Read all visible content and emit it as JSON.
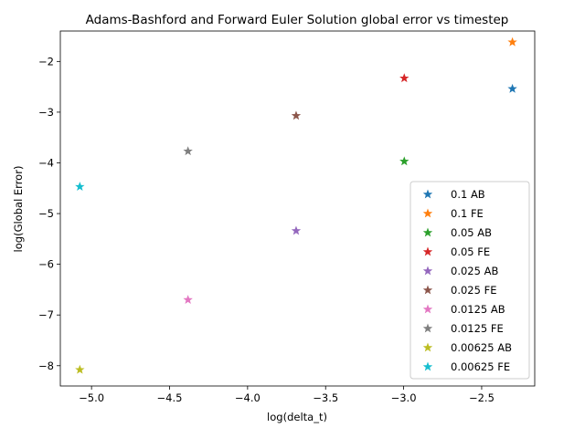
{
  "chart_data": {
    "type": "scatter",
    "title": "Adams-Bashford and Forward Euler Solution global error vs timestep",
    "xlabel": "log(delta_t)",
    "ylabel": "log(Global Error)",
    "xlim": [
      -5.2,
      -2.16
    ],
    "ylim": [
      -8.4,
      -1.4
    ],
    "xticks": [
      -5.0,
      -4.5,
      -4.0,
      -3.5,
      -3.0,
      -2.5
    ],
    "xtick_labels": [
      "−5.0",
      "−4.5",
      "−4.0",
      "−3.5",
      "−3.0",
      "−2.5"
    ],
    "yticks": [
      -8,
      -7,
      -6,
      -5,
      -4,
      -3,
      -2
    ],
    "ytick_labels": [
      "−8",
      "−7",
      "−6",
      "−5",
      "−4",
      "−3",
      "−2"
    ],
    "grid": false,
    "legend_position": "lower-right",
    "marker": "star",
    "series": [
      {
        "name": "0.1 AB",
        "color": "#1f77b4",
        "x": -2.303,
        "y": -2.54
      },
      {
        "name": "0.1 FE",
        "color": "#ff7f0e",
        "x": -2.303,
        "y": -1.62
      },
      {
        "name": "0.05 AB",
        "color": "#2ca02c",
        "x": -2.996,
        "y": -3.97
      },
      {
        "name": "0.05 FE",
        "color": "#d62728",
        "x": -2.996,
        "y": -2.33
      },
      {
        "name": "0.025 AB",
        "color": "#9467bd",
        "x": -3.689,
        "y": -5.34
      },
      {
        "name": "0.025 FE",
        "color": "#8c564b",
        "x": -3.689,
        "y": -3.07
      },
      {
        "name": "0.0125 AB",
        "color": "#e377c2",
        "x": -4.382,
        "y": -6.7
      },
      {
        "name": "0.0125 FE",
        "color": "#7f7f7f",
        "x": -4.382,
        "y": -3.77
      },
      {
        "name": "0.00625 AB",
        "color": "#bcbd22",
        "x": -5.075,
        "y": -8.08
      },
      {
        "name": "0.00625 FE",
        "color": "#17becf",
        "x": -5.075,
        "y": -4.47
      }
    ]
  }
}
